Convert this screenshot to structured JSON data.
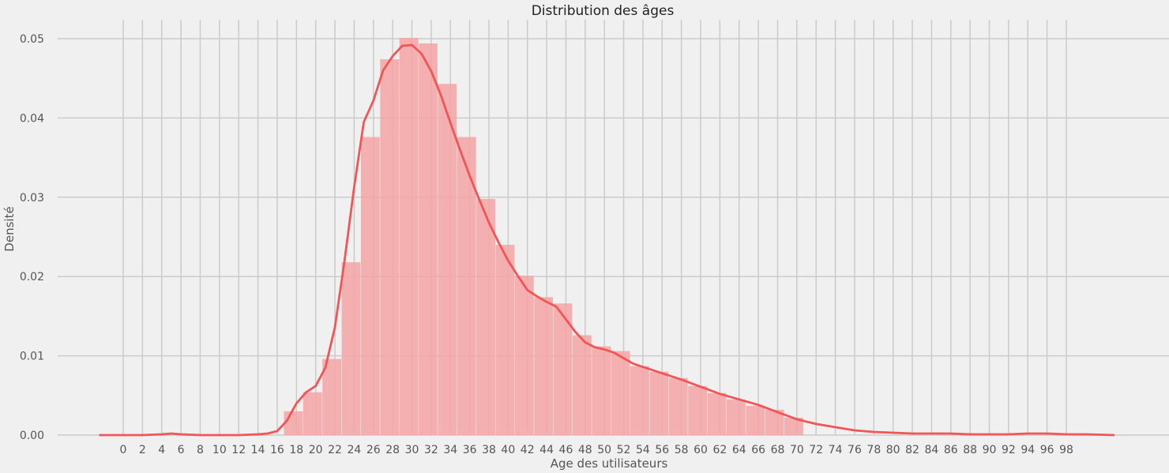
{
  "chart_data": {
    "type": "bar",
    "title": "Distribution des âges",
    "xlabel": "Age des utilisateurs",
    "ylabel": "Densité",
    "xlim": [
      -2.5,
      103
    ],
    "ylim": [
      0,
      0.0525
    ],
    "x_ticks": [
      0,
      2,
      4,
      6,
      8,
      10,
      12,
      14,
      16,
      18,
      20,
      22,
      24,
      26,
      28,
      30,
      32,
      34,
      36,
      38,
      40,
      42,
      44,
      46,
      48,
      50,
      52,
      54,
      56,
      58,
      60,
      62,
      64,
      66,
      68,
      70,
      72,
      74,
      76,
      78,
      80,
      82,
      84,
      86,
      88,
      90,
      92,
      94,
      96,
      98
    ],
    "y_ticks": [
      0.0,
      0.01,
      0.02,
      0.03,
      0.04,
      0.05
    ],
    "y_tick_labels": [
      "0.00",
      "0.01",
      "0.02",
      "0.03",
      "0.04",
      "0.05"
    ],
    "grid": true,
    "series": [
      {
        "kind": "histogram",
        "color": "#f4a5a5",
        "bin_width": 2,
        "bins": [
          {
            "x0": 16.7,
            "value": 0.003
          },
          {
            "x0": 18.7,
            "value": 0.0054
          },
          {
            "x0": 20.7,
            "value": 0.0096
          },
          {
            "x0": 22.7,
            "value": 0.0218
          },
          {
            "x0": 24.7,
            "value": 0.0376
          },
          {
            "x0": 26.7,
            "value": 0.0474
          },
          {
            "x0": 28.7,
            "value": 0.0501
          },
          {
            "x0": 30.7,
            "value": 0.0494
          },
          {
            "x0": 32.7,
            "value": 0.0443
          },
          {
            "x0": 34.7,
            "value": 0.0376
          },
          {
            "x0": 36.7,
            "value": 0.0298
          },
          {
            "x0": 38.7,
            "value": 0.024
          },
          {
            "x0": 40.7,
            "value": 0.0201
          },
          {
            "x0": 42.7,
            "value": 0.0174
          },
          {
            "x0": 44.7,
            "value": 0.0166
          },
          {
            "x0": 46.7,
            "value": 0.0126
          },
          {
            "x0": 48.7,
            "value": 0.0112
          },
          {
            "x0": 50.7,
            "value": 0.0106
          },
          {
            "x0": 52.7,
            "value": 0.0087
          },
          {
            "x0": 54.7,
            "value": 0.008
          },
          {
            "x0": 56.7,
            "value": 0.0072
          },
          {
            "x0": 58.7,
            "value": 0.0062
          },
          {
            "x0": 60.7,
            "value": 0.0053
          },
          {
            "x0": 62.7,
            "value": 0.0045
          },
          {
            "x0": 64.7,
            "value": 0.0037
          },
          {
            "x0": 66.7,
            "value": 0.0032
          },
          {
            "x0": 68.7,
            "value": 0.0022
          }
        ]
      },
      {
        "kind": "kde",
        "color": "#f25555",
        "x": [
          -2.5,
          2,
          4,
          5,
          6,
          8,
          12,
          14,
          15,
          16,
          17,
          18,
          19,
          20,
          21,
          22,
          23,
          24,
          25,
          26,
          27,
          28,
          29,
          30,
          31,
          32,
          33,
          34,
          35,
          36,
          37,
          38,
          39,
          40,
          41,
          42,
          43,
          44,
          45,
          46,
          47,
          48,
          49,
          50,
          51,
          52,
          53,
          54,
          56,
          58,
          60,
          62,
          64,
          66,
          68,
          70,
          72,
          74,
          76,
          78,
          80,
          82,
          84,
          86,
          88,
          90,
          92,
          94,
          96,
          98,
          100,
          103
        ],
        "y": [
          0,
          0,
          0.0001,
          0.0002,
          0.0001,
          0,
          0,
          0.0001,
          0.0002,
          0.0005,
          0.0018,
          0.004,
          0.0054,
          0.0062,
          0.0085,
          0.0136,
          0.022,
          0.0313,
          0.0395,
          0.0422,
          0.046,
          0.0478,
          0.0491,
          0.0492,
          0.0481,
          0.0459,
          0.0429,
          0.0394,
          0.036,
          0.0327,
          0.0297,
          0.0268,
          0.0243,
          0.022,
          0.0201,
          0.0183,
          0.0175,
          0.0168,
          0.0162,
          0.0146,
          0.013,
          0.0117,
          0.0111,
          0.0108,
          0.0104,
          0.0097,
          0.009,
          0.0086,
          0.0078,
          0.007,
          0.0061,
          0.0052,
          0.0045,
          0.0038,
          0.0029,
          0.002,
          0.0014,
          0.001,
          0.0006,
          0.0004,
          0.0003,
          0.0002,
          0.0002,
          0.0002,
          0.0001,
          0.0001,
          0.0001,
          0.0002,
          0.0002,
          0.0001,
          0.0001,
          0
        ]
      }
    ]
  }
}
